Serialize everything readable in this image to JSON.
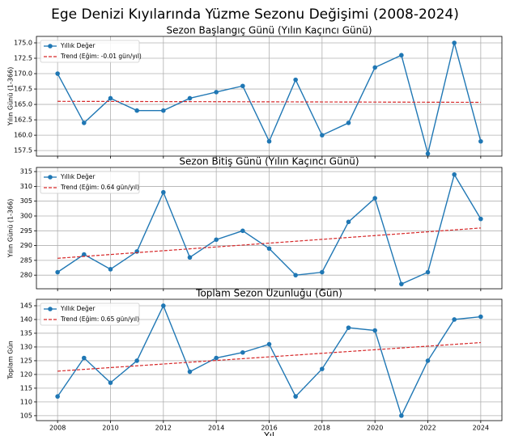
{
  "title": "Ege Denizi Kıyılarında Yüzme Sezonu Değişimi (2008-2024)",
  "chart_data": [
    {
      "type": "line",
      "title": "Sezon Başlangıç Günü (Yılın Kaçıncı Günü)",
      "ylabel": "Yılın Günü (1-366)",
      "x": [
        2008,
        2009,
        2010,
        2011,
        2012,
        2013,
        2014,
        2015,
        2016,
        2017,
        2018,
        2019,
        2020,
        2021,
        2022,
        2023,
        2024
      ],
      "series": [
        {
          "name": "Yıllık Değer",
          "color": "#1f77b4",
          "marker": true,
          "values": [
            170,
            162,
            166,
            164,
            164,
            166,
            167,
            168,
            159,
            169,
            160,
            162,
            171,
            173,
            157,
            175,
            159
          ]
        },
        {
          "name": "Trend (Eğim: -0.01 gün/yıl)",
          "color": "#d62728",
          "dashed": true,
          "values": [
            165.5,
            165.49,
            165.48,
            165.47,
            165.46,
            165.45,
            165.44,
            165.43,
            165.42,
            165.41,
            165.4,
            165.39,
            165.38,
            165.37,
            165.36,
            165.35,
            165.34
          ]
        }
      ],
      "xlim": [
        2007.2,
        2024.8
      ],
      "xticks": [
        2008,
        2010,
        2012,
        2014,
        2016,
        2018,
        2020,
        2022,
        2024
      ],
      "ylim": [
        156.6,
        176.05
      ],
      "yticks": [
        157.5,
        {
          "value": 160,
          "label": "160.0"
        },
        162.5,
        {
          "value": 165,
          "label": "165.0"
        },
        167.5,
        {
          "value": 170,
          "label": "170.0"
        },
        172.5,
        {
          "value": 175,
          "label": "175.0"
        }
      ],
      "legend": "upper left",
      "grid": true
    },
    {
      "type": "line",
      "title": "Sezon Bitiş Günü (Yılın Kaçıncı Günü)",
      "ylabel": "Yılın Günü (1-366)",
      "x": [
        2008,
        2009,
        2010,
        2011,
        2012,
        2013,
        2014,
        2015,
        2016,
        2017,
        2018,
        2019,
        2020,
        2021,
        2022,
        2023,
        2024
      ],
      "series": [
        {
          "name": "Yıllık Değer",
          "color": "#1f77b4",
          "marker": true,
          "values": [
            281,
            287,
            282,
            288,
            308,
            286,
            292,
            295,
            289,
            280,
            281,
            298,
            306,
            277,
            281,
            314,
            299
          ]
        },
        {
          "name": "Trend (Eğim: 0.64 gün/yıl)",
          "color": "#d62728",
          "dashed": true,
          "values": [
            285.7,
            286.34,
            286.98,
            287.62,
            288.26,
            288.9,
            289.54,
            290.18,
            290.82,
            291.46,
            292.1,
            292.74,
            293.38,
            294.02,
            294.66,
            295.3,
            295.94
          ]
        }
      ],
      "xlim": [
        2007.2,
        2024.8
      ],
      "xticks": [
        2008,
        2010,
        2012,
        2014,
        2016,
        2018,
        2020,
        2022,
        2024
      ],
      "ylim": [
        275.4,
        316.4
      ],
      "yticks": [
        280,
        285,
        290,
        295,
        300,
        305,
        310,
        315
      ],
      "legend": "upper left",
      "grid": true
    },
    {
      "type": "line",
      "title": "Toplam Sezon Uzunluğu (Gün)",
      "ylabel": "Toplam Gün",
      "xlabel": "Yıl",
      "x": [
        2008,
        2009,
        2010,
        2011,
        2012,
        2013,
        2014,
        2015,
        2016,
        2017,
        2018,
        2019,
        2020,
        2021,
        2022,
        2023,
        2024
      ],
      "series": [
        {
          "name": "Yıllık Değer",
          "color": "#1f77b4",
          "marker": true,
          "values": [
            112,
            126,
            117,
            125,
            145,
            121,
            126,
            128,
            131,
            112,
            122,
            137,
            136,
            105,
            125,
            140,
            141
          ]
        },
        {
          "name": "Trend (Eğim: 0.65 gün/yıl)",
          "color": "#d62728",
          "dashed": true,
          "values": [
            121.2,
            121.85,
            122.5,
            123.15,
            123.8,
            124.45,
            125.1,
            125.75,
            126.4,
            127.05,
            127.7,
            128.35,
            129,
            129.65,
            130.3,
            130.95,
            131.6
          ]
        }
      ],
      "xlim": [
        2007.2,
        2024.8
      ],
      "xticks": [
        2008,
        2010,
        2012,
        2014,
        2016,
        2018,
        2020,
        2022,
        2024
      ],
      "ylim": [
        103.2,
        147.35
      ],
      "yticks": [
        105,
        110,
        115,
        120,
        125,
        130,
        135,
        140,
        145
      ],
      "legend": "upper left",
      "grid": true
    }
  ]
}
